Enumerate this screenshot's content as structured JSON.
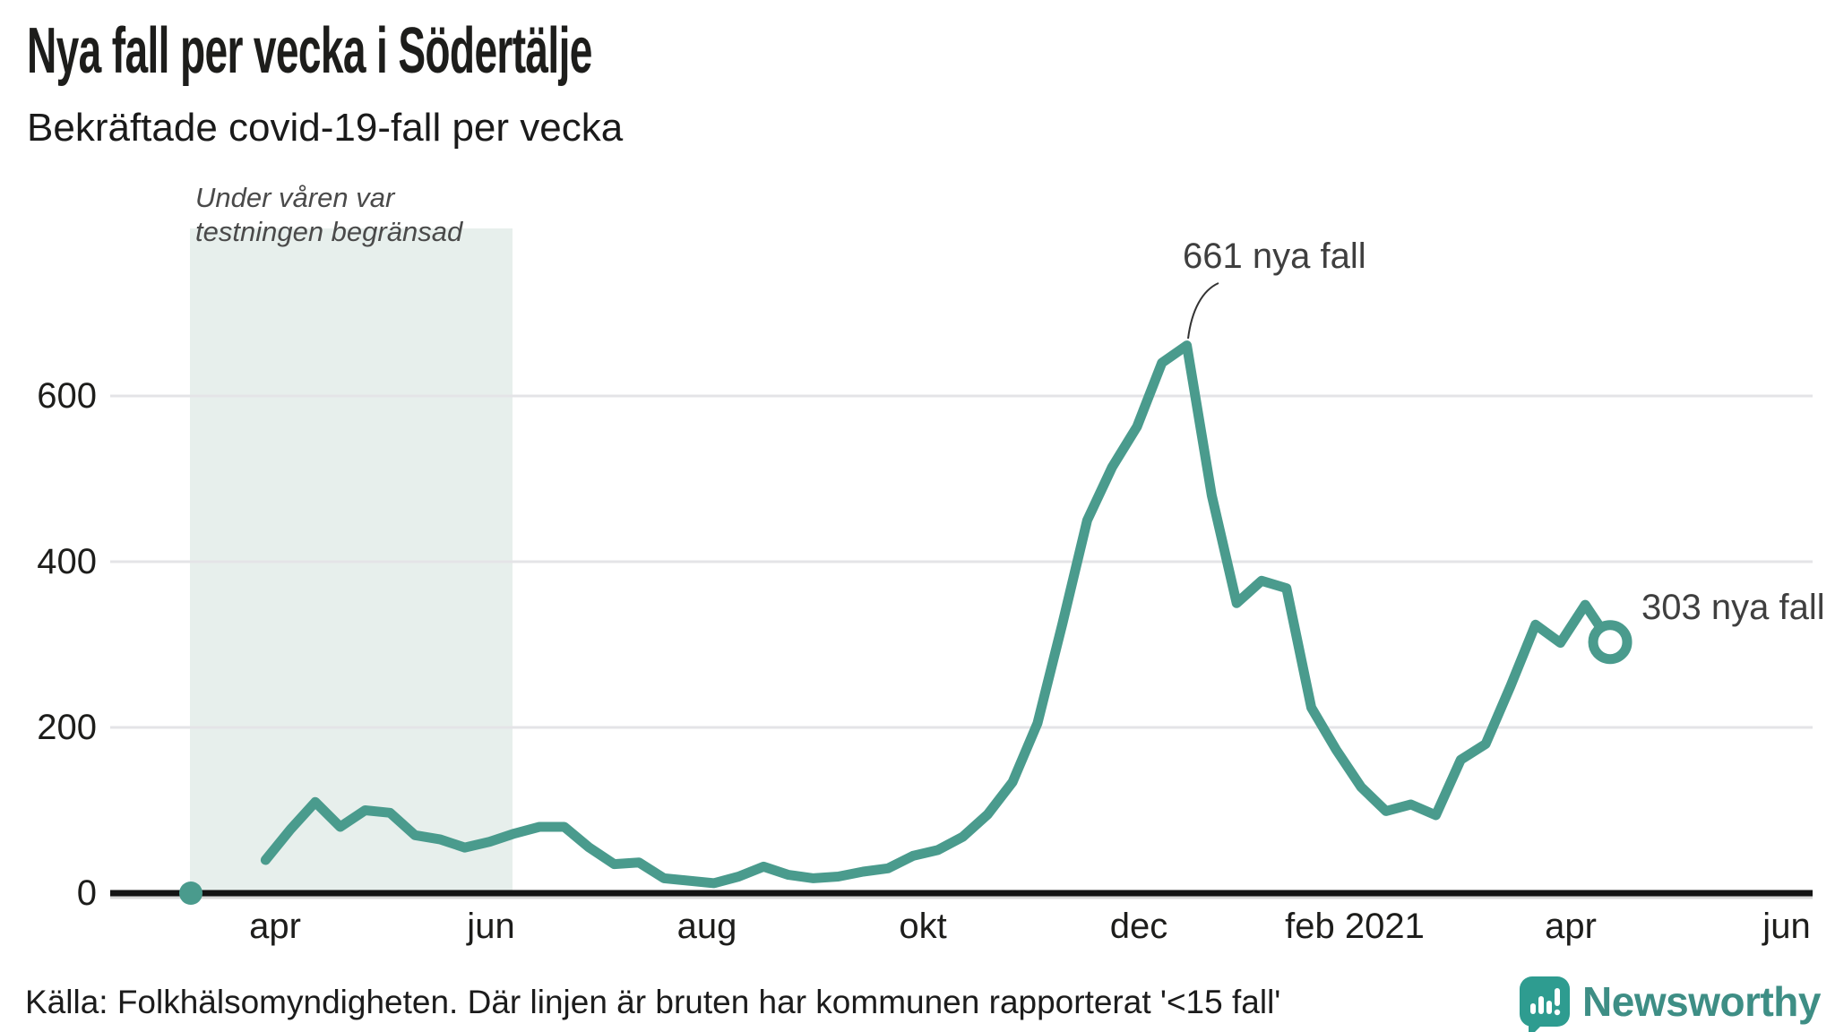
{
  "header": {
    "title": "Nya fall per vecka i Södertälje",
    "subtitle": "Bekräftade covid-19-fall per vecka"
  },
  "region_note": {
    "line1": "Under våren var",
    "line2": "testningen begränsad"
  },
  "annotations": {
    "peak_label": "661 nya fall",
    "latest_label": "303 nya fall"
  },
  "footer": {
    "source": "Källa: Folkhälsomyndigheten. Där linjen är bruten har kommunen rapporterat '<15 fall'"
  },
  "logo": {
    "brand": "Newsworthy"
  },
  "colors": {
    "line": "#4a9b8d",
    "region": "#e7efec",
    "grid": "#e4e4e7",
    "axis_under": "#d8d8d8",
    "axis": "#141414",
    "leader": "#333333",
    "logo_bubble": "#2e9c90",
    "logo_text": "#3e8e85"
  },
  "chart_data": {
    "type": "line",
    "title": "Nya fall per vecka i Södertälje",
    "subtitle": "Bekräftade covid-19-fall per vecka",
    "unit": "nya covid-19-fall per vecka",
    "x_ticks": [
      "apr",
      "jun",
      "aug",
      "okt",
      "dec",
      "feb 2021",
      "apr",
      "jun"
    ],
    "x_range": "mars 2020 – april 2021, veckovis",
    "y_ticks": [
      0,
      200,
      400,
      600
    ],
    "ylim": [
      0,
      800
    ],
    "grid": "horizontal",
    "legend": "none",
    "series": [
      {
        "name": "Bekräftade covid-19-fall",
        "values": [
          0,
          null,
          null,
          40,
          77,
          110,
          80,
          100,
          97,
          70,
          65,
          55,
          62,
          72,
          80,
          80,
          55,
          35,
          37,
          18,
          15,
          12,
          20,
          32,
          22,
          18,
          20,
          26,
          30,
          45,
          52,
          68,
          95,
          134,
          205,
          325,
          450,
          514,
          563,
          640,
          661,
          480,
          350,
          377,
          368,
          224,
          173,
          128,
          99,
          107,
          94,
          161,
          180,
          250,
          324,
          302,
          348,
          303
        ]
      }
    ],
    "peak": {
      "value": 661,
      "label": "661 nya fall"
    },
    "latest": {
      "value": 303,
      "label": "303 nya fall",
      "marker": "open-circle"
    },
    "start_marker": {
      "value": 0,
      "marker": "filled-dot"
    },
    "gap_note": "Där linjen är bruten har kommunen rapporterat '<15 fall'",
    "shaded_region": {
      "label": "Under våren var testningen begränsad",
      "x_range_weeks": [
        0,
        13
      ]
    }
  }
}
